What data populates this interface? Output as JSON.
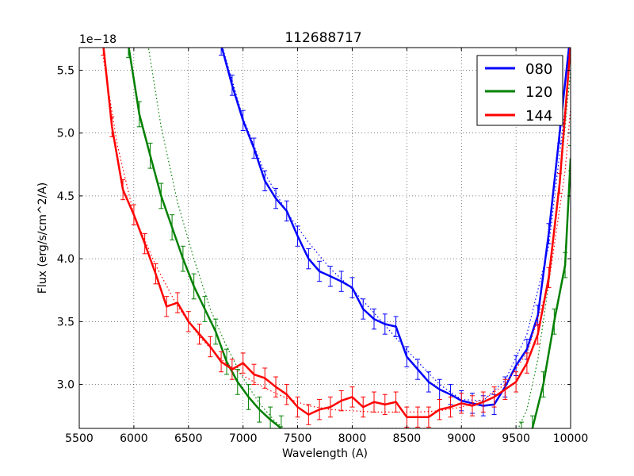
{
  "chart_data": {
    "type": "line",
    "title": "112688717",
    "xlabel": "Wavelength (A)",
    "ylabel": "Flux (erg/s/cm^2/A)",
    "y_offset_label": "1e−18",
    "xlim": [
      5500,
      10000
    ],
    "ylim": [
      2.65,
      5.68
    ],
    "x_ticks": [
      5500,
      6000,
      6500,
      7000,
      7500,
      8000,
      8500,
      9000,
      9500,
      10000
    ],
    "x_tick_labels": [
      "5500",
      "6000",
      "6500",
      "7000",
      "7500",
      "8000",
      "8500",
      "9000",
      "9500",
      "10000"
    ],
    "y_ticks": [
      3.0,
      3.5,
      4.0,
      4.5,
      5.0,
      5.5
    ],
    "y_tick_labels": [
      "3.0",
      "3.5",
      "4.0",
      "4.5",
      "5.0",
      "5.5"
    ],
    "grid": true,
    "legend_position": "top-right",
    "series": [
      {
        "name": "080",
        "color": "#0000ff",
        "x": [
          6800,
          6900,
          7000,
          7100,
          7200,
          7300,
          7400,
          7500,
          7600,
          7700,
          7800,
          7900,
          8000,
          8100,
          8200,
          8300,
          8400,
          8500,
          8600,
          8700,
          8800,
          8900,
          9000,
          9100,
          9200,
          9300,
          9400,
          9500,
          9600,
          9700,
          9800,
          9900,
          10000
        ],
        "values": [
          5.7,
          5.38,
          5.1,
          4.88,
          4.62,
          4.48,
          4.38,
          4.18,
          4.0,
          3.9,
          3.86,
          3.82,
          3.77,
          3.6,
          3.52,
          3.48,
          3.46,
          3.22,
          3.12,
          3.02,
          2.96,
          2.92,
          2.87,
          2.85,
          2.83,
          2.84,
          2.98,
          3.15,
          3.28,
          3.55,
          4.2,
          5.0,
          5.8
        ],
        "err": 0.08,
        "fit": [
          [
            6800,
            5.72
          ],
          [
            7000,
            5.12
          ],
          [
            7200,
            4.68
          ],
          [
            7400,
            4.37
          ],
          [
            7600,
            4.13
          ],
          [
            7800,
            3.92
          ],
          [
            8000,
            3.76
          ],
          [
            8200,
            3.57
          ],
          [
            8400,
            3.37
          ],
          [
            8600,
            3.18
          ],
          [
            8800,
            3.0
          ],
          [
            9000,
            2.88
          ],
          [
            9200,
            2.87
          ],
          [
            9400,
            3.03
          ],
          [
            9600,
            3.4
          ],
          [
            9800,
            4.1
          ],
          [
            9950,
            5.2
          ],
          [
            10000,
            5.7
          ]
        ]
      },
      {
        "name": "120",
        "color": "#008000",
        "x": [
          5950,
          6050,
          6150,
          6250,
          6350,
          6450,
          6550,
          6650,
          6750,
          6850,
          6950,
          7050,
          7150,
          7250,
          7350,
          9550,
          9650,
          9750,
          9850,
          9950,
          10000
        ],
        "values": [
          5.7,
          5.15,
          4.82,
          4.5,
          4.25,
          4.0,
          3.78,
          3.6,
          3.42,
          3.18,
          3.02,
          2.9,
          2.8,
          2.72,
          2.65,
          2.6,
          2.65,
          3.0,
          3.5,
          3.95,
          4.8
        ],
        "err": 0.1,
        "fit": [
          [
            6130,
            5.7
          ],
          [
            6250,
            5.05
          ],
          [
            6400,
            4.45
          ],
          [
            6550,
            4.0
          ],
          [
            6700,
            3.6
          ],
          [
            6850,
            3.3
          ],
          [
            7000,
            3.05
          ],
          [
            7150,
            2.85
          ],
          [
            7300,
            2.7
          ],
          [
            7380,
            2.65
          ],
          [
            9520,
            2.65
          ],
          [
            9600,
            2.8
          ],
          [
            9700,
            3.2
          ],
          [
            9800,
            3.8
          ],
          [
            9900,
            4.6
          ],
          [
            10000,
            5.5
          ]
        ]
      },
      {
        "name": "144",
        "color": "#ff0000",
        "x": [
          5720,
          5800,
          5900,
          6000,
          6100,
          6200,
          6300,
          6400,
          6500,
          6600,
          6700,
          6800,
          6900,
          7000,
          7100,
          7200,
          7300,
          7400,
          7500,
          7600,
          7700,
          7800,
          7900,
          8000,
          8100,
          8200,
          8300,
          8400,
          8500,
          8600,
          8700,
          8800,
          8900,
          9000,
          9100,
          9200,
          9300,
          9400,
          9500,
          9600,
          9700,
          9800,
          9900,
          10000
        ],
        "values": [
          5.7,
          5.05,
          4.55,
          4.35,
          4.12,
          3.88,
          3.62,
          3.65,
          3.5,
          3.4,
          3.3,
          3.18,
          3.12,
          3.17,
          3.08,
          3.05,
          2.98,
          2.92,
          2.82,
          2.76,
          2.8,
          2.82,
          2.87,
          2.9,
          2.82,
          2.86,
          2.84,
          2.86,
          2.74,
          2.74,
          2.74,
          2.8,
          2.82,
          2.85,
          2.83,
          2.86,
          2.9,
          2.96,
          3.02,
          3.17,
          3.4,
          3.85,
          4.6,
          5.7
        ],
        "err": 0.08,
        "fit": [
          [
            5720,
            5.6
          ],
          [
            5850,
            4.9
          ],
          [
            6000,
            4.35
          ],
          [
            6200,
            3.95
          ],
          [
            6400,
            3.62
          ],
          [
            6600,
            3.38
          ],
          [
            6800,
            3.2
          ],
          [
            7000,
            3.07
          ],
          [
            7200,
            2.97
          ],
          [
            7400,
            2.89
          ],
          [
            7600,
            2.83
          ],
          [
            7800,
            2.8
          ],
          [
            8000,
            2.79
          ],
          [
            8200,
            2.78
          ],
          [
            8400,
            2.78
          ],
          [
            8600,
            2.78
          ],
          [
            8800,
            2.79
          ],
          [
            9000,
            2.82
          ],
          [
            9200,
            2.88
          ],
          [
            9400,
            3.0
          ],
          [
            9600,
            3.25
          ],
          [
            9800,
            3.8
          ],
          [
            9950,
            4.7
          ],
          [
            10000,
            5.2
          ]
        ]
      }
    ]
  }
}
